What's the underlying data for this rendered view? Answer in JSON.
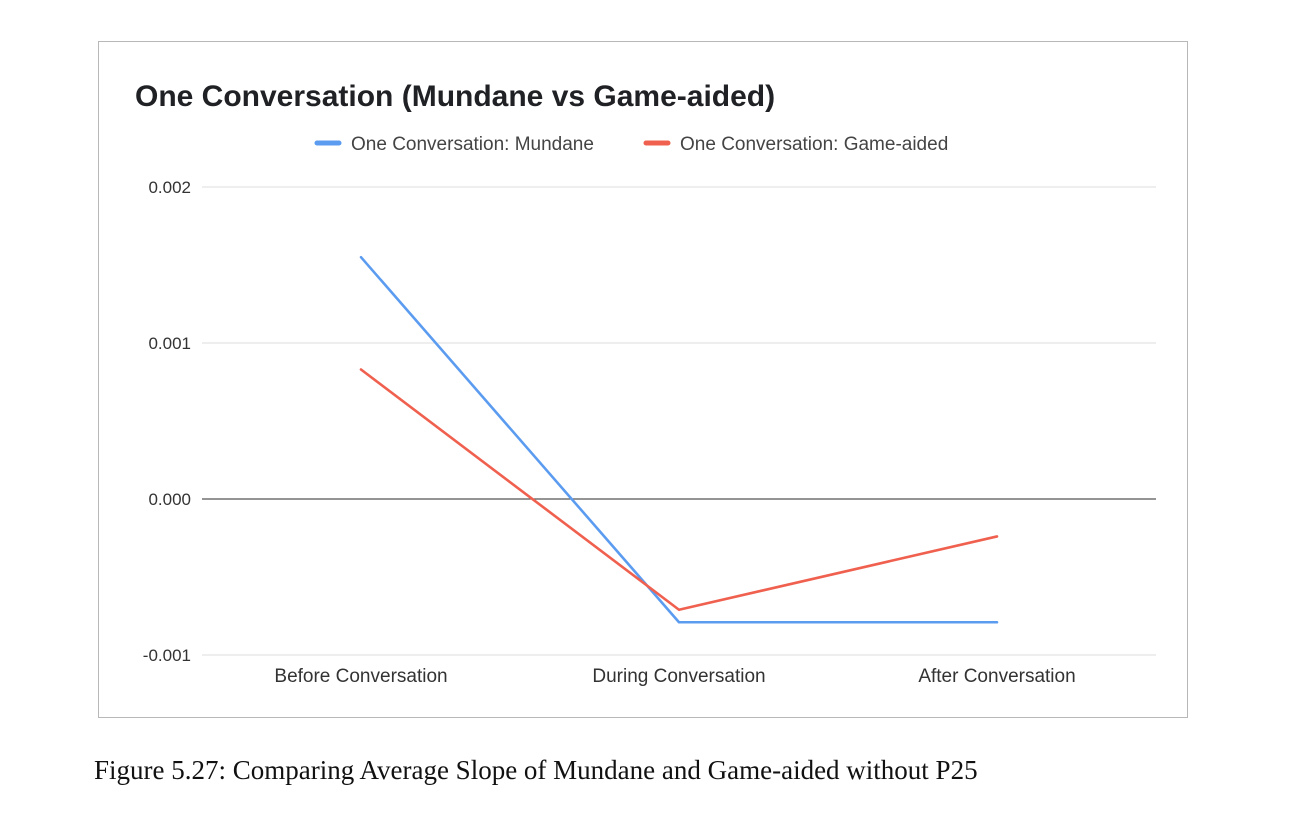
{
  "caption": "Figure 5.27: Comparing Average Slope of Mundane and Game-aided without P25",
  "chart_data": {
    "type": "line",
    "title": "One Conversation (Mundane vs Game-aided)",
    "xlabel": "",
    "ylabel": "",
    "categories": [
      "Before Conversation",
      "During Conversation",
      "After Conversation"
    ],
    "series": [
      {
        "name": "One Conversation: Mundane",
        "color": "#5c9cf0",
        "values": [
          0.00155,
          -0.00079,
          -0.00079
        ]
      },
      {
        "name": "One Conversation: Game-aided",
        "color": "#f0604f",
        "values": [
          0.00083,
          -0.00071,
          -0.00024
        ]
      }
    ],
    "ylim": [
      -0.001,
      0.002
    ],
    "yticks": [
      -0.001,
      0.0,
      0.001,
      0.002
    ],
    "ytick_labels": [
      "-0.001",
      "0.000",
      "0.001",
      "0.002"
    ],
    "grid": true,
    "legend": "top"
  }
}
